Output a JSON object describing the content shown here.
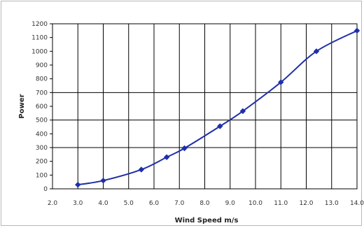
{
  "chart_data": {
    "type": "line",
    "title": "",
    "xlabel": "Wind Speed m/s",
    "ylabel": "Power",
    "xlim": [
      2.0,
      14.0
    ],
    "ylim": [
      0,
      1200
    ],
    "x_ticks": [
      2.0,
      3.0,
      4.0,
      5.0,
      6.0,
      7.0,
      8.0,
      9.0,
      10.0,
      11.0,
      12.0,
      13.0,
      14.0
    ],
    "x_tick_labels": [
      "2.0",
      "3.0",
      "4.0",
      "5.0",
      "6.0",
      "7.0",
      "8.0",
      "9.0",
      "10.0",
      "11.0",
      "12.0",
      "13.0",
      "14.0"
    ],
    "y_ticks": [
      0,
      100,
      200,
      300,
      400,
      500,
      600,
      700,
      800,
      900,
      1000,
      1100,
      1200
    ],
    "y_tick_labels": [
      "0",
      "100",
      "200",
      "300",
      "400",
      "500",
      "600",
      "700",
      "800",
      "900",
      "1000",
      "1100",
      "1200"
    ],
    "grid": {
      "vertical": true,
      "horizontal_at": [
        300,
        500,
        700
      ]
    },
    "line_color": "#1f2fa8",
    "series": [
      {
        "x": [
          3.0,
          4.0,
          5.5,
          6.5,
          7.2,
          8.6,
          9.5,
          11.0,
          12.4,
          14.0
        ],
        "y": [
          30,
          60,
          140,
          230,
          295,
          455,
          565,
          775,
          1000,
          1150
        ]
      }
    ]
  }
}
